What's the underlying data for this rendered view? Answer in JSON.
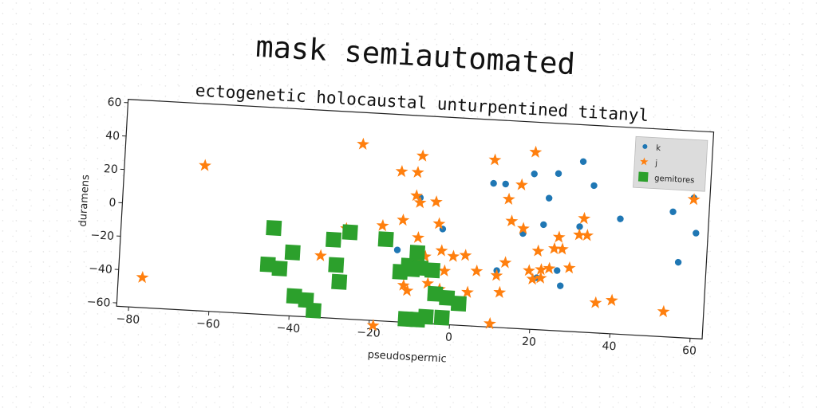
{
  "chart_data": {
    "type": "scatter",
    "suptitle": "mask semiautomated",
    "title": "ectogenetic holocaustal unturpentined titanyl",
    "xlabel": "pseudospermic",
    "ylabel": "duramens",
    "xlim": [
      -83,
      63
    ],
    "ylim": [
      -62,
      62
    ],
    "xticks": [
      -80,
      -60,
      -40,
      -20,
      0,
      20,
      40,
      60
    ],
    "yticks": [
      -60,
      -40,
      -20,
      0,
      20,
      40,
      60
    ],
    "xtick_labels": [
      "−80",
      "−60",
      "−40",
      "−20",
      "0",
      "20",
      "40",
      "60"
    ],
    "ytick_labels": [
      "−60",
      "−40",
      "−20",
      "0",
      "20",
      "40",
      "60"
    ],
    "legend_position": "upper right",
    "series": [
      {
        "name": "k",
        "marker": "circle",
        "color": "#1f77b4",
        "points": [
          [
            -14,
            -19
          ],
          [
            -9,
            13
          ],
          [
            -3,
            -5
          ],
          [
            9,
            24
          ],
          [
            12,
            24
          ],
          [
            11,
            -28
          ],
          [
            17,
            -5
          ],
          [
            19,
            31
          ],
          [
            21,
            -31
          ],
          [
            22,
            1
          ],
          [
            23,
            17
          ],
          [
            25,
            32
          ],
          [
            26,
            -26
          ],
          [
            27,
            -35
          ],
          [
            31,
            40
          ],
          [
            31,
            1
          ],
          [
            34,
            26
          ],
          [
            41,
            7
          ],
          [
            54,
            13
          ],
          [
            57,
            35
          ],
          [
            59,
            22
          ],
          [
            56,
            -17
          ],
          [
            60,
            1
          ]
        ]
      },
      {
        "name": "j",
        "marker": "star",
        "color": "#ff7f0e",
        "points": [
          [
            -77,
            -44
          ],
          [
            -63,
            25
          ],
          [
            -33,
            -25
          ],
          [
            -27,
            -8
          ],
          [
            -24,
            43
          ],
          [
            -18,
            -5
          ],
          [
            -14,
            28
          ],
          [
            -13,
            -1
          ],
          [
            -10,
            28
          ],
          [
            -10,
            14
          ],
          [
            -9,
            38
          ],
          [
            -9,
            10
          ],
          [
            -9,
            -11
          ],
          [
            -9,
            -25
          ],
          [
            -7,
            -22
          ],
          [
            -7,
            -30
          ],
          [
            -6,
            -38
          ],
          [
            -5,
            11
          ],
          [
            -4,
            -2
          ],
          [
            -3,
            -18
          ],
          [
            -3,
            -41
          ],
          [
            -2,
            -30
          ],
          [
            -12,
            -40
          ],
          [
            -11,
            -43
          ],
          [
            -19,
            -65
          ],
          [
            0,
            -21
          ],
          [
            3,
            -20
          ],
          [
            4,
            -42
          ],
          [
            6,
            -29
          ],
          [
            9,
            38
          ],
          [
            10,
            -60
          ],
          [
            11,
            -31
          ],
          [
            12,
            -41
          ],
          [
            13,
            -23
          ],
          [
            13,
            15
          ],
          [
            14,
            2
          ],
          [
            16,
            24
          ],
          [
            17,
            -2
          ],
          [
            19,
            -27
          ],
          [
            19,
            44
          ],
          [
            20,
            -32
          ],
          [
            21,
            -15
          ],
          [
            22,
            -26
          ],
          [
            22,
            -31
          ],
          [
            24,
            -25
          ],
          [
            25,
            -13
          ],
          [
            26,
            -6
          ],
          [
            27,
            -13
          ],
          [
            29,
            -24
          ],
          [
            31,
            -4
          ],
          [
            32,
            6
          ],
          [
            33,
            -4
          ],
          [
            36,
            -44
          ],
          [
            40,
            -42
          ],
          [
            53,
            -47
          ],
          [
            59,
            21
          ]
        ]
      },
      {
        "name": "gemitores",
        "marker": "square",
        "color": "#2ca02c",
        "points": [
          [
            -45,
            -10
          ],
          [
            -46,
            -32
          ],
          [
            -43,
            -34
          ],
          [
            -40,
            -24
          ],
          [
            -39,
            -50
          ],
          [
            -36,
            -52
          ],
          [
            -34,
            -58
          ],
          [
            -30,
            -15
          ],
          [
            -29,
            -30
          ],
          [
            -28,
            -40
          ],
          [
            -26,
            -10
          ],
          [
            -17,
            -13
          ],
          [
            -13,
            -32
          ],
          [
            -11,
            -28
          ],
          [
            -10,
            -30
          ],
          [
            -9,
            -20
          ],
          [
            -8,
            -29
          ],
          [
            -11,
            -60
          ],
          [
            -8,
            -60
          ],
          [
            -6,
            -58
          ],
          [
            -5,
            -30
          ],
          [
            -4,
            -44
          ],
          [
            -2,
            -58
          ],
          [
            -1,
            -46
          ],
          [
            2,
            -49
          ]
        ]
      }
    ]
  }
}
